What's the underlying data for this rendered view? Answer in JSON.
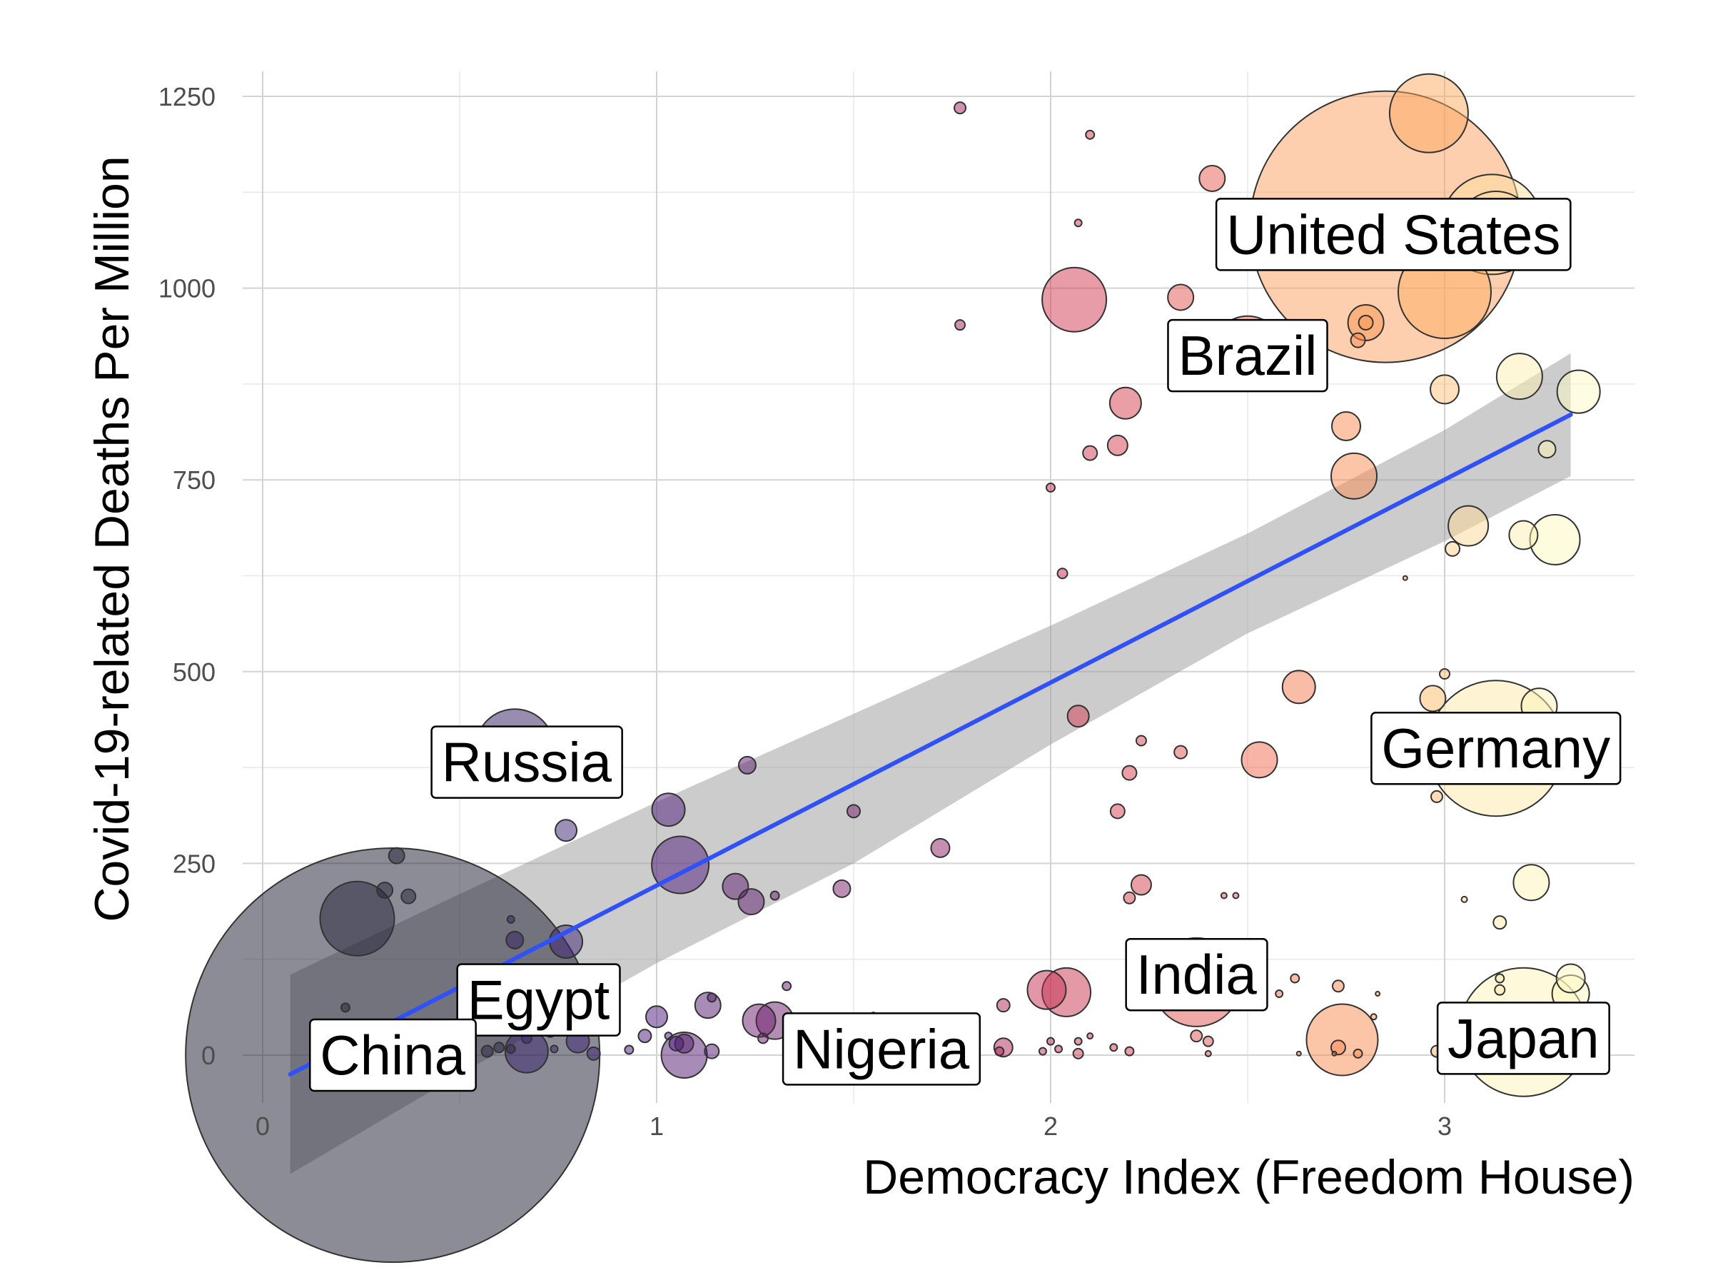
{
  "chart_data": {
    "type": "scatter",
    "title": "",
    "xlabel": "Democracy Index (Freedom House)",
    "ylabel": "Covid-19-related Deaths Per Million",
    "xlim": [
      0,
      3.5
    ],
    "ylim": [
      -60,
      1250
    ],
    "x_ticks": [
      0,
      1,
      2,
      3
    ],
    "y_ticks": [
      0,
      250,
      500,
      750,
      1000,
      1250
    ],
    "grid": true,
    "legend": "none",
    "colors": {
      "trend_line": "#3050f8",
      "confidence_band": "#999999"
    },
    "trend": {
      "x": [
        0.07,
        3.32
      ],
      "y": [
        -25,
        835
      ]
    },
    "band": {
      "x": [
        0.07,
        0.5,
        1.0,
        1.5,
        2.0,
        2.5,
        3.0,
        3.32
      ],
      "upper": [
        105,
        210,
        330,
        445,
        560,
        680,
        815,
        915
      ],
      "lower": [
        -155,
        -25,
        120,
        250,
        405,
        550,
        670,
        755
      ]
    },
    "points": [
      {
        "x": 0.33,
        "y": 0,
        "r": 290,
        "c": "#1a1a2e"
      },
      {
        "x": 0.24,
        "y": 178,
        "r": 52,
        "c": "#22223a"
      },
      {
        "x": 0.21,
        "y": 62,
        "r": 6,
        "c": "#22223a"
      },
      {
        "x": 0.31,
        "y": 215,
        "r": 11,
        "c": "#22223a"
      },
      {
        "x": 0.34,
        "y": 260,
        "r": 11,
        "c": "#22223a"
      },
      {
        "x": 0.37,
        "y": 207,
        "r": 10,
        "c": "#22223a"
      },
      {
        "x": 0.45,
        "y": 15,
        "r": 10,
        "c": "#2c2348"
      },
      {
        "x": 0.52,
        "y": 18,
        "r": 12,
        "c": "#2c2348"
      },
      {
        "x": 0.57,
        "y": 5,
        "r": 8,
        "c": "#2c2348"
      },
      {
        "x": 0.6,
        "y": 10,
        "r": 7,
        "c": "#2c2348"
      },
      {
        "x": 0.63,
        "y": 8,
        "r": 6,
        "c": "#2c2348"
      },
      {
        "x": 0.64,
        "y": 400,
        "r": 55,
        "c": "#321b5e"
      },
      {
        "x": 0.64,
        "y": 150,
        "r": 12,
        "c": "#321b5e"
      },
      {
        "x": 0.63,
        "y": 177,
        "r": 5,
        "c": "#321b5e"
      },
      {
        "x": 0.67,
        "y": 5,
        "r": 30,
        "c": "#36206a"
      },
      {
        "x": 0.67,
        "y": 22,
        "r": 7,
        "c": "#36206a"
      },
      {
        "x": 0.73,
        "y": 30,
        "r": 7,
        "c": "#36206a"
      },
      {
        "x": 0.77,
        "y": 148,
        "r": 23,
        "c": "#3a1f72"
      },
      {
        "x": 0.77,
        "y": 293,
        "r": 15,
        "c": "#3a1f72"
      },
      {
        "x": 0.74,
        "y": 8,
        "r": 5,
        "c": "#3a1f72"
      },
      {
        "x": 0.8,
        "y": 18,
        "r": 16,
        "c": "#3a1f72"
      },
      {
        "x": 0.84,
        "y": 2,
        "r": 9,
        "c": "#3a1f72"
      },
      {
        "x": 0.93,
        "y": 7,
        "r": 6,
        "c": "#4b1a7a"
      },
      {
        "x": 0.97,
        "y": 25,
        "r": 9,
        "c": "#4b1a7a"
      },
      {
        "x": 1.0,
        "y": 50,
        "r": 15,
        "c": "#4b1a7a"
      },
      {
        "x": 1.03,
        "y": 320,
        "r": 23,
        "c": "#4b1a7a"
      },
      {
        "x": 1.03,
        "y": 25,
        "r": 5,
        "c": "#4b1a7a"
      },
      {
        "x": 1.05,
        "y": 15,
        "r": 10,
        "c": "#4b1a7a"
      },
      {
        "x": 1.06,
        "y": 248,
        "r": 40,
        "c": "#4b1a7a"
      },
      {
        "x": 1.07,
        "y": 0,
        "r": 32,
        "c": "#521870"
      },
      {
        "x": 1.07,
        "y": 15,
        "r": 13,
        "c": "#521870"
      },
      {
        "x": 1.13,
        "y": 65,
        "r": 18,
        "c": "#521870"
      },
      {
        "x": 1.14,
        "y": 75,
        "r": 6,
        "c": "#521870"
      },
      {
        "x": 1.14,
        "y": 5,
        "r": 10,
        "c": "#521870"
      },
      {
        "x": 1.2,
        "y": 220,
        "r": 18,
        "c": "#5b1a6e"
      },
      {
        "x": 1.23,
        "y": 378,
        "r": 12,
        "c": "#5b1a6e"
      },
      {
        "x": 1.24,
        "y": 200,
        "r": 18,
        "c": "#5b1a6e"
      },
      {
        "x": 1.26,
        "y": 45,
        "r": 23,
        "c": "#6a1c6c"
      },
      {
        "x": 1.27,
        "y": 22,
        "r": 7,
        "c": "#6a1c6c"
      },
      {
        "x": 1.3,
        "y": 45,
        "r": 26,
        "c": "#6a1c6c"
      },
      {
        "x": 1.3,
        "y": 208,
        "r": 6,
        "c": "#6a1c6c"
      },
      {
        "x": 1.33,
        "y": 90,
        "r": 6,
        "c": "#6a1c6c"
      },
      {
        "x": 1.47,
        "y": 217,
        "r": 12,
        "c": "#7a1e6a"
      },
      {
        "x": 1.5,
        "y": 318,
        "r": 9,
        "c": "#7a1e6a"
      },
      {
        "x": 1.55,
        "y": 52,
        "r": 4,
        "c": "#7a1e6a"
      },
      {
        "x": 1.72,
        "y": 270,
        "r": 13,
        "c": "#8a1f64"
      },
      {
        "x": 1.77,
        "y": 1235,
        "r": 8,
        "c": "#a5235e"
      },
      {
        "x": 1.77,
        "y": 952,
        "r": 7,
        "c": "#a5235e"
      },
      {
        "x": 1.88,
        "y": 65,
        "r": 9,
        "c": "#b02858"
      },
      {
        "x": 1.88,
        "y": 10,
        "r": 13,
        "c": "#b02858"
      },
      {
        "x": 1.87,
        "y": 5,
        "r": 6,
        "c": "#b02858"
      },
      {
        "x": 1.99,
        "y": 85,
        "r": 27,
        "c": "#c4304f"
      },
      {
        "x": 1.98,
        "y": 5,
        "r": 5,
        "c": "#c4304f"
      },
      {
        "x": 2.0,
        "y": 740,
        "r": 6,
        "c": "#c4304f"
      },
      {
        "x": 2.0,
        "y": 18,
        "r": 5,
        "c": "#c4304f"
      },
      {
        "x": 2.02,
        "y": 8,
        "r": 5,
        "c": "#c4304f"
      },
      {
        "x": 2.03,
        "y": 628,
        "r": 7,
        "c": "#c4304f"
      },
      {
        "x": 2.04,
        "y": 82,
        "r": 34,
        "c": "#c93350"
      },
      {
        "x": 2.06,
        "y": 985,
        "r": 45,
        "c": "#d03a50"
      },
      {
        "x": 2.07,
        "y": 442,
        "r": 15,
        "c": "#d03a50"
      },
      {
        "x": 2.07,
        "y": 1085,
        "r": 5,
        "c": "#d03a50"
      },
      {
        "x": 2.07,
        "y": 18,
        "r": 5,
        "c": "#d03a50"
      },
      {
        "x": 2.07,
        "y": 2,
        "r": 7,
        "c": "#d03a50"
      },
      {
        "x": 2.1,
        "y": 1200,
        "r": 6,
        "c": "#d03a50"
      },
      {
        "x": 2.1,
        "y": 785,
        "r": 10,
        "c": "#d03a50"
      },
      {
        "x": 2.1,
        "y": 25,
        "r": 4,
        "c": "#d03a50"
      },
      {
        "x": 2.16,
        "y": 10,
        "r": 5,
        "c": "#d54050"
      },
      {
        "x": 2.17,
        "y": 318,
        "r": 10,
        "c": "#d54050"
      },
      {
        "x": 2.17,
        "y": 795,
        "r": 14,
        "c": "#d54050"
      },
      {
        "x": 2.19,
        "y": 850,
        "r": 22,
        "c": "#d54050"
      },
      {
        "x": 2.2,
        "y": 368,
        "r": 10,
        "c": "#d54050"
      },
      {
        "x": 2.2,
        "y": 205,
        "r": 8,
        "c": "#d54050"
      },
      {
        "x": 2.2,
        "y": 5,
        "r": 6,
        "c": "#d54050"
      },
      {
        "x": 2.23,
        "y": 222,
        "r": 14,
        "c": "#d54050"
      },
      {
        "x": 2.23,
        "y": 410,
        "r": 7,
        "c": "#d54050"
      },
      {
        "x": 2.33,
        "y": 988,
        "r": 18,
        "c": "#e05550"
      },
      {
        "x": 2.33,
        "y": 395,
        "r": 9,
        "c": "#e05550"
      },
      {
        "x": 2.37,
        "y": 95,
        "r": 62,
        "c": "#e05550"
      },
      {
        "x": 2.37,
        "y": 25,
        "r": 8,
        "c": "#e05550"
      },
      {
        "x": 2.4,
        "y": 18,
        "r": 7,
        "c": "#e05550"
      },
      {
        "x": 2.4,
        "y": 2,
        "r": 4,
        "c": "#e05550"
      },
      {
        "x": 2.41,
        "y": 1143,
        "r": 18,
        "c": "#e85a4f"
      },
      {
        "x": 2.44,
        "y": 208,
        "r": 4,
        "c": "#e85a4f"
      },
      {
        "x": 2.47,
        "y": 208,
        "r": 4,
        "c": "#e85a4f"
      },
      {
        "x": 2.5,
        "y": 917,
        "r": 50,
        "c": "#ef6a4f"
      },
      {
        "x": 2.53,
        "y": 385,
        "r": 25,
        "c": "#ef6a4f"
      },
      {
        "x": 2.58,
        "y": 80,
        "r": 5,
        "c": "#ef6a4f"
      },
      {
        "x": 2.62,
        "y": 100,
        "r": 6,
        "c": "#f47a4f"
      },
      {
        "x": 2.63,
        "y": 480,
        "r": 23,
        "c": "#f47a4f"
      },
      {
        "x": 2.63,
        "y": 2,
        "r": 3,
        "c": "#f47a4f"
      },
      {
        "x": 2.73,
        "y": 90,
        "r": 8,
        "c": "#f8854f"
      },
      {
        "x": 2.73,
        "y": 10,
        "r": 10,
        "c": "#f8854f"
      },
      {
        "x": 2.72,
        "y": 2,
        "r": 3,
        "c": "#f8854f"
      },
      {
        "x": 2.74,
        "y": 20,
        "r": 50,
        "c": "#f98c50"
      },
      {
        "x": 2.75,
        "y": 820,
        "r": 20,
        "c": "#f98c50"
      },
      {
        "x": 2.77,
        "y": 755,
        "r": 32,
        "c": "#f98c50"
      },
      {
        "x": 2.78,
        "y": 932,
        "r": 10,
        "c": "#f98c50"
      },
      {
        "x": 2.78,
        "y": 2,
        "r": 6,
        "c": "#f98c50"
      },
      {
        "x": 2.8,
        "y": 955,
        "r": 25,
        "c": "#fb9650"
      },
      {
        "x": 2.8,
        "y": 955,
        "r": 10,
        "c": "#fb9650"
      },
      {
        "x": 2.82,
        "y": 50,
        "r": 4,
        "c": "#fb9650"
      },
      {
        "x": 2.83,
        "y": 80,
        "r": 3,
        "c": "#fb9650"
      },
      {
        "x": 2.85,
        "y": 1080,
        "r": 190,
        "c": "#fca060"
      },
      {
        "x": 2.9,
        "y": 622,
        "r": 3,
        "c": "#fca060"
      },
      {
        "x": 2.96,
        "y": 1228,
        "r": 55,
        "c": "#fda95f"
      },
      {
        "x": 2.97,
        "y": 465,
        "r": 18,
        "c": "#fdba6a"
      },
      {
        "x": 2.98,
        "y": 337,
        "r": 8,
        "c": "#fdba6a"
      },
      {
        "x": 2.98,
        "y": 5,
        "r": 8,
        "c": "#fdba6a"
      },
      {
        "x": 3.0,
        "y": 868,
        "r": 20,
        "c": "#fdc47a"
      },
      {
        "x": 3.0,
        "y": 497,
        "r": 7,
        "c": "#fdc47a"
      },
      {
        "x": 3.0,
        "y": 995,
        "r": 65,
        "c": "#fdb060"
      },
      {
        "x": 3.02,
        "y": 660,
        "r": 10,
        "c": "#fdd08a"
      },
      {
        "x": 3.06,
        "y": 690,
        "r": 28,
        "c": "#fdd894"
      },
      {
        "x": 3.05,
        "y": 203,
        "r": 4,
        "c": "#fdd894"
      },
      {
        "x": 3.12,
        "y": 1083,
        "r": 70,
        "c": "#fde0a0"
      },
      {
        "x": 3.13,
        "y": 1075,
        "r": 55,
        "c": "#fde0a0"
      },
      {
        "x": 3.13,
        "y": 400,
        "r": 95,
        "c": "#fee8a8"
      },
      {
        "x": 3.14,
        "y": 173,
        "r": 9,
        "c": "#fee8a8"
      },
      {
        "x": 3.14,
        "y": 85,
        "r": 7,
        "c": "#fee8a8"
      },
      {
        "x": 3.14,
        "y": 100,
        "r": 6,
        "c": "#fee8a8"
      },
      {
        "x": 3.19,
        "y": 885,
        "r": 32,
        "c": "#fef0b0"
      },
      {
        "x": 3.2,
        "y": 678,
        "r": 20,
        "c": "#fef0b0"
      },
      {
        "x": 3.2,
        "y": 30,
        "r": 90,
        "c": "#fef4b8"
      },
      {
        "x": 3.22,
        "y": 225,
        "r": 25,
        "c": "#fef4b8"
      },
      {
        "x": 3.24,
        "y": 455,
        "r": 25,
        "c": "#fef4b8"
      },
      {
        "x": 3.26,
        "y": 790,
        "r": 12,
        "c": "#fef4b8"
      },
      {
        "x": 3.28,
        "y": 672,
        "r": 35,
        "c": "#fef8c0"
      },
      {
        "x": 3.32,
        "y": 100,
        "r": 20,
        "c": "#fef8c0"
      },
      {
        "x": 3.32,
        "y": 80,
        "r": 26,
        "c": "#fef8c0"
      },
      {
        "x": 3.34,
        "y": 865,
        "r": 30,
        "c": "#fefac4"
      }
    ],
    "annotations": [
      {
        "text": "United States",
        "x": 2.87,
        "y": 1070
      },
      {
        "text": "Brazil",
        "x": 2.5,
        "y": 912
      },
      {
        "text": "Russia",
        "x": 0.67,
        "y": 382
      },
      {
        "text": "Germany",
        "x": 3.13,
        "y": 400
      },
      {
        "text": "India",
        "x": 2.37,
        "y": 105
      },
      {
        "text": "Egypt",
        "x": 0.7,
        "y": 72
      },
      {
        "text": "China",
        "x": 0.33,
        "y": 0
      },
      {
        "text": "Nigeria",
        "x": 1.57,
        "y": 8
      },
      {
        "text": "Japan",
        "x": 3.2,
        "y": 22
      }
    ]
  }
}
